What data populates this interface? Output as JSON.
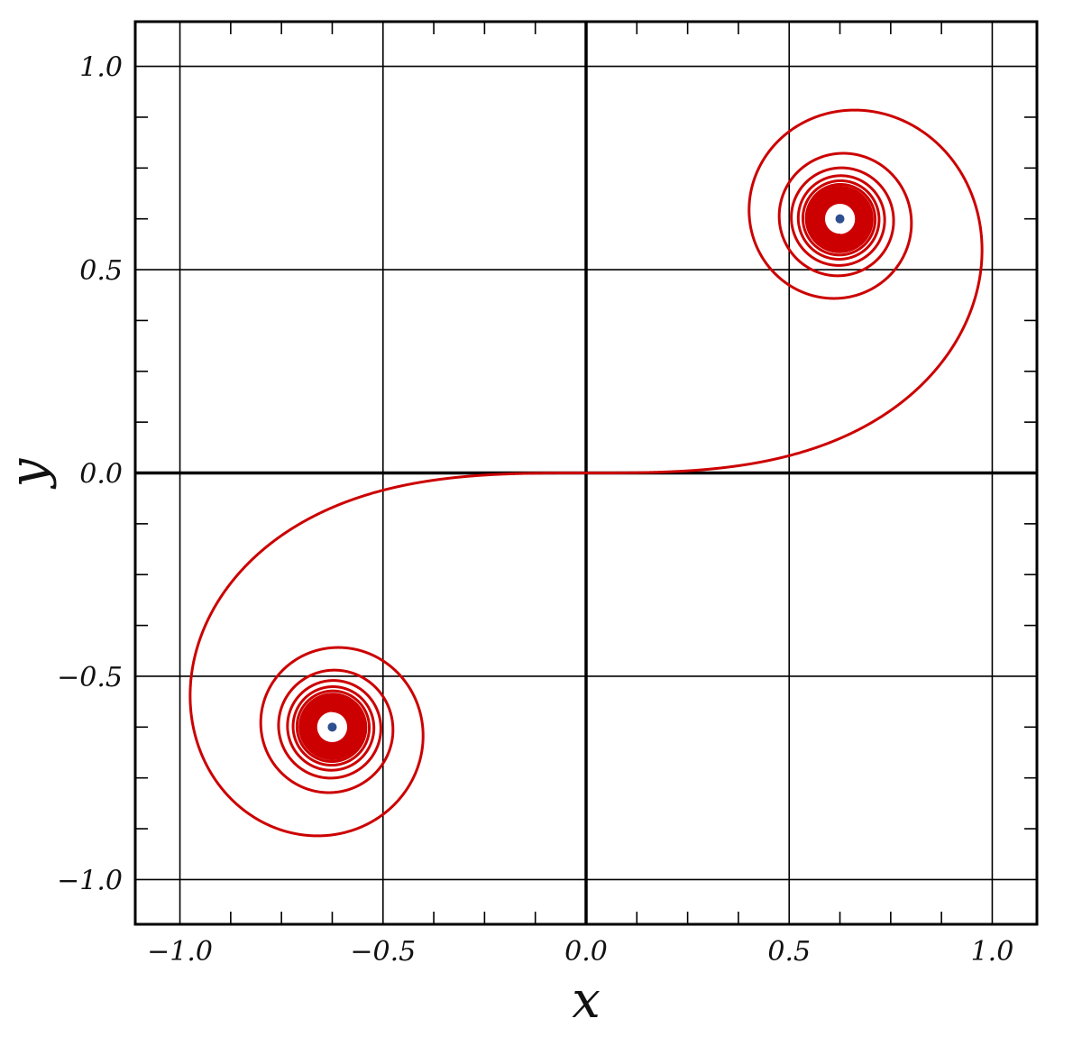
{
  "chart_data": {
    "type": "line",
    "title": "",
    "xlabel": "x",
    "ylabel": "y",
    "xlim": [
      -1.11,
      1.11
    ],
    "ylim": [
      -1.11,
      1.11
    ],
    "xticks": [
      -1.0,
      -0.5,
      0.0,
      0.5,
      1.0
    ],
    "yticks": [
      -1.0,
      -0.5,
      0.0,
      0.5,
      1.0
    ],
    "xtick_labels": [
      "−1.0",
      "−0.5",
      "0.0",
      "0.5",
      "1.0"
    ],
    "ytick_labels": [
      "−1.0",
      "−0.5",
      "0.0",
      "0.5",
      "1.0"
    ],
    "grid": true,
    "curve": {
      "color": "#cc0000",
      "description_points": {
        "x": [
          0.0,
          0.3,
          0.6,
          0.85,
          0.98,
          0.93,
          0.77,
          0.63,
          0.5,
          0.54,
          0.63
        ],
        "y": [
          0.0,
          0.02,
          0.12,
          0.3,
          0.56,
          0.78,
          0.9,
          0.9,
          0.7,
          0.63,
          0.625
        ]
      }
    },
    "points": {
      "color": "#2e5090",
      "x": [
        0.625,
        -0.625
      ],
      "y": [
        0.625,
        -0.625
      ]
    }
  }
}
